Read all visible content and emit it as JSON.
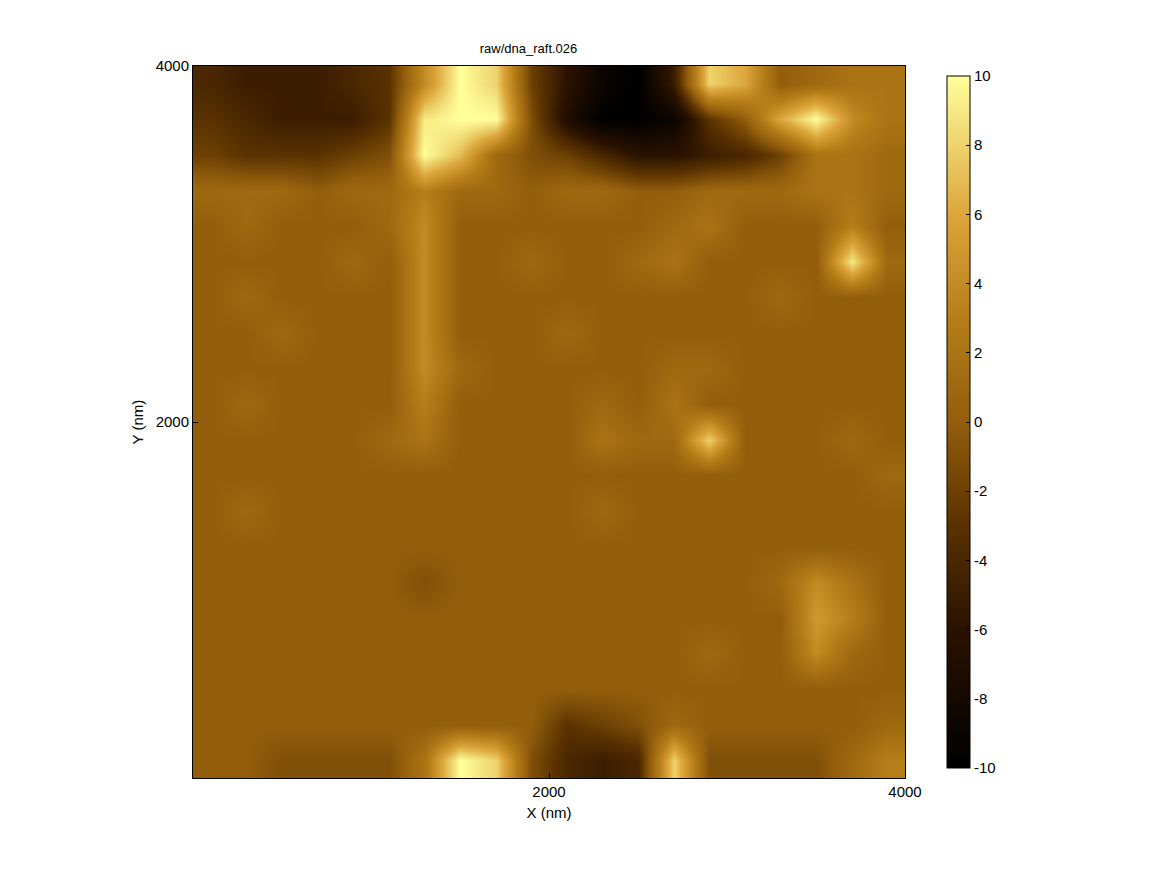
{
  "chart_data": {
    "type": "heatmap",
    "title": "raw/dna_raft.026",
    "x_label": "X (nm)",
    "y_label": "Y (nm)",
    "x": [
      100,
      300,
      500,
      700,
      900,
      1100,
      1300,
      1500,
      1700,
      1900,
      2100,
      2300,
      2500,
      2700,
      2900,
      3100,
      3300,
      3500,
      3700,
      3900
    ],
    "y": [
      3900,
      3700,
      3500,
      3300,
      3100,
      2900,
      2700,
      2500,
      2300,
      2100,
      1900,
      1700,
      1500,
      1300,
      1100,
      900,
      700,
      500,
      300,
      100
    ],
    "z": [
      [
        -4,
        -5,
        -5,
        -5,
        -4,
        -3,
        4,
        10,
        8,
        -2,
        -6,
        -9,
        -10,
        -5,
        8,
        6,
        0,
        1,
        2,
        2
      ],
      [
        -3,
        -4,
        -5,
        -5,
        -5,
        -3,
        9,
        10,
        10,
        -1,
        -7,
        -10,
        -10,
        -9,
        -3,
        0,
        6,
        10,
        4,
        2
      ],
      [
        -2,
        -3,
        -3,
        -3,
        -2,
        -1,
        10,
        7,
        1,
        -1,
        -2,
        -4,
        -6,
        -6,
        -5,
        -4,
        -2,
        2,
        2,
        1
      ],
      [
        1,
        1,
        1,
        0,
        1,
        1,
        3,
        1,
        1,
        0,
        1,
        1,
        0,
        0,
        1,
        1,
        1,
        2,
        2,
        1
      ],
      [
        0,
        1,
        0,
        0,
        0,
        1,
        4,
        0,
        0,
        0,
        0,
        0,
        0,
        1,
        2,
        0,
        0,
        0,
        3,
        0
      ],
      [
        0,
        0,
        0,
        0,
        1,
        0,
        4,
        0,
        0,
        1,
        0,
        0,
        1,
        2,
        0,
        0,
        0,
        0,
        9,
        1
      ],
      [
        0,
        1,
        0,
        0,
        0,
        0,
        4,
        0,
        0,
        0,
        0,
        0,
        0,
        0,
        0,
        0,
        1,
        0,
        0,
        0
      ],
      [
        0,
        0,
        1,
        0,
        0,
        0,
        4,
        0,
        0,
        0,
        1,
        0,
        0,
        0,
        0,
        0,
        0,
        0,
        0,
        0
      ],
      [
        0,
        0,
        0,
        0,
        0,
        0,
        4,
        1,
        0,
        0,
        0,
        0,
        0,
        1,
        1,
        0,
        0,
        0,
        0,
        0
      ],
      [
        0,
        1,
        0,
        0,
        0,
        0,
        3,
        0,
        0,
        0,
        0,
        1,
        0,
        2,
        0,
        0,
        0,
        0,
        0,
        0
      ],
      [
        0,
        0,
        0,
        0,
        0,
        1,
        2,
        0,
        0,
        0,
        0,
        2,
        1,
        1,
        8,
        0,
        0,
        0,
        1,
        0
      ],
      [
        0,
        0,
        0,
        0,
        0,
        0,
        0,
        0,
        0,
        0,
        0,
        0,
        0,
        0,
        0,
        0,
        0,
        0,
        0,
        1
      ],
      [
        0,
        1,
        0,
        0,
        0,
        0,
        0,
        0,
        0,
        0,
        0,
        1,
        0,
        0,
        0,
        0,
        0,
        0,
        0,
        0
      ],
      [
        0,
        0,
        0,
        0,
        0,
        0,
        0,
        0,
        0,
        0,
        0,
        0,
        0,
        0,
        0,
        0,
        0,
        0,
        0,
        0
      ],
      [
        0,
        0,
        0,
        0,
        0,
        0,
        -1,
        0,
        0,
        0,
        0,
        0,
        0,
        0,
        0,
        0,
        1,
        4,
        2,
        0
      ],
      [
        0,
        0,
        0,
        0,
        0,
        0,
        0,
        0,
        0,
        0,
        0,
        0,
        0,
        0,
        0,
        0,
        0,
        5,
        3,
        0
      ],
      [
        0,
        0,
        0,
        0,
        0,
        0,
        0,
        0,
        0,
        0,
        0,
        0,
        0,
        0,
        1,
        0,
        0,
        4,
        1,
        0
      ],
      [
        0,
        0,
        0,
        0,
        0,
        0,
        0,
        0,
        0,
        0,
        0,
        0,
        0,
        0,
        0,
        0,
        0,
        0,
        0,
        0
      ],
      [
        0,
        0,
        0,
        0,
        0,
        0,
        0,
        0,
        0,
        0,
        -3,
        -2,
        -1,
        1,
        0,
        0,
        0,
        0,
        0,
        1
      ],
      [
        0,
        0,
        -1,
        -1,
        -1,
        -1,
        2,
        10,
        8,
        -1,
        -4,
        -5,
        -4,
        8,
        -1,
        -1,
        -1,
        -1,
        1,
        3
      ]
    ],
    "xlim": [
      0,
      4000
    ],
    "ylim": [
      0,
      4000
    ],
    "xticks": [
      2000,
      4000
    ],
    "yticks": [
      2000,
      4000
    ],
    "colorbar_range": [
      -10,
      10
    ],
    "colorbar_ticks": [
      -10,
      -8,
      -6,
      -4,
      -2,
      0,
      2,
      4,
      6,
      8,
      10
    ]
  }
}
